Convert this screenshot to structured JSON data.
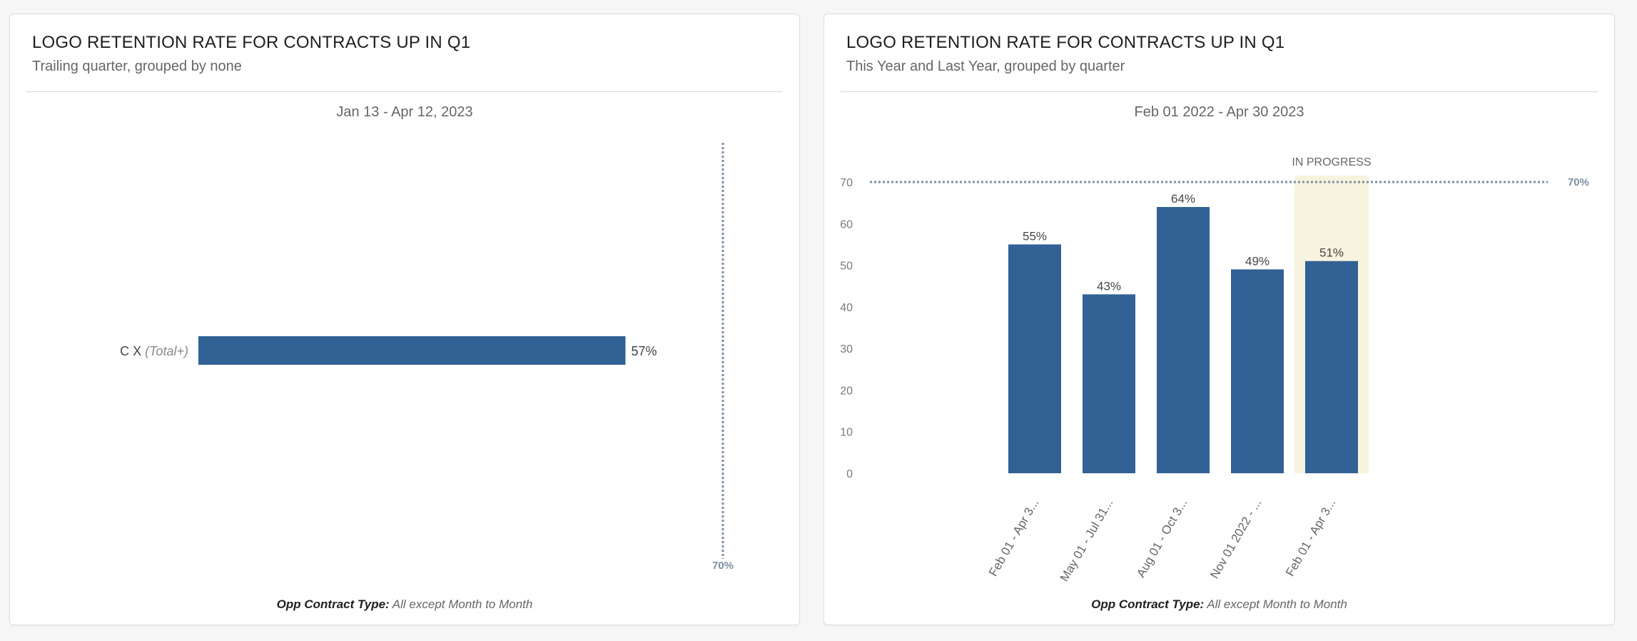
{
  "colors": {
    "bar": "#316195",
    "target_line": "#7e8ea3",
    "in_progress_band": "#f8f3de",
    "axis_text": "#7a7a7a",
    "label_text": "#444444"
  },
  "cards": [
    {
      "title": "LOGO RETENTION RATE FOR CONTRACTS UP IN Q1",
      "subtitle": "Trailing quarter, grouped by none",
      "date_range": "Jan 13 - Apr 12, 2023",
      "filter_key": "Opp Contract Type:",
      "filter_value": "All except Month to Month"
    },
    {
      "title": "LOGO RETENTION RATE FOR CONTRACTS UP IN Q1",
      "subtitle": "This Year and Last Year, grouped by quarter",
      "date_range": "Feb 01 2022 - Apr 30 2023",
      "filter_key": "Opp Contract Type:",
      "filter_value": "All except Month to Month"
    }
  ],
  "chart_data": [
    {
      "type": "bar",
      "orientation": "horizontal",
      "categories": [
        "C X"
      ],
      "category_suffix": "(Total+)",
      "values": [
        57
      ],
      "value_labels": [
        "57%"
      ],
      "xlim": [
        0,
        75
      ],
      "target": {
        "value": 70,
        "label": "70%"
      }
    },
    {
      "type": "bar",
      "orientation": "vertical",
      "categories": [
        "Feb 01 - Apr 3...",
        "May 01 - Jul 31...",
        "Aug 01 - Oct 3...",
        "Nov 01 2022 - ...",
        "Feb 01 - Apr 3..."
      ],
      "values": [
        55,
        43,
        64,
        49,
        51
      ],
      "value_labels": [
        "55%",
        "43%",
        "64%",
        "49%",
        "51%"
      ],
      "ylim": [
        0,
        70
      ],
      "yticks": [
        0,
        10,
        20,
        30,
        40,
        50,
        60,
        70
      ],
      "target": {
        "value": 70,
        "label": "70%"
      },
      "in_progress": {
        "index": 4,
        "label": "IN PROGRESS"
      }
    }
  ]
}
